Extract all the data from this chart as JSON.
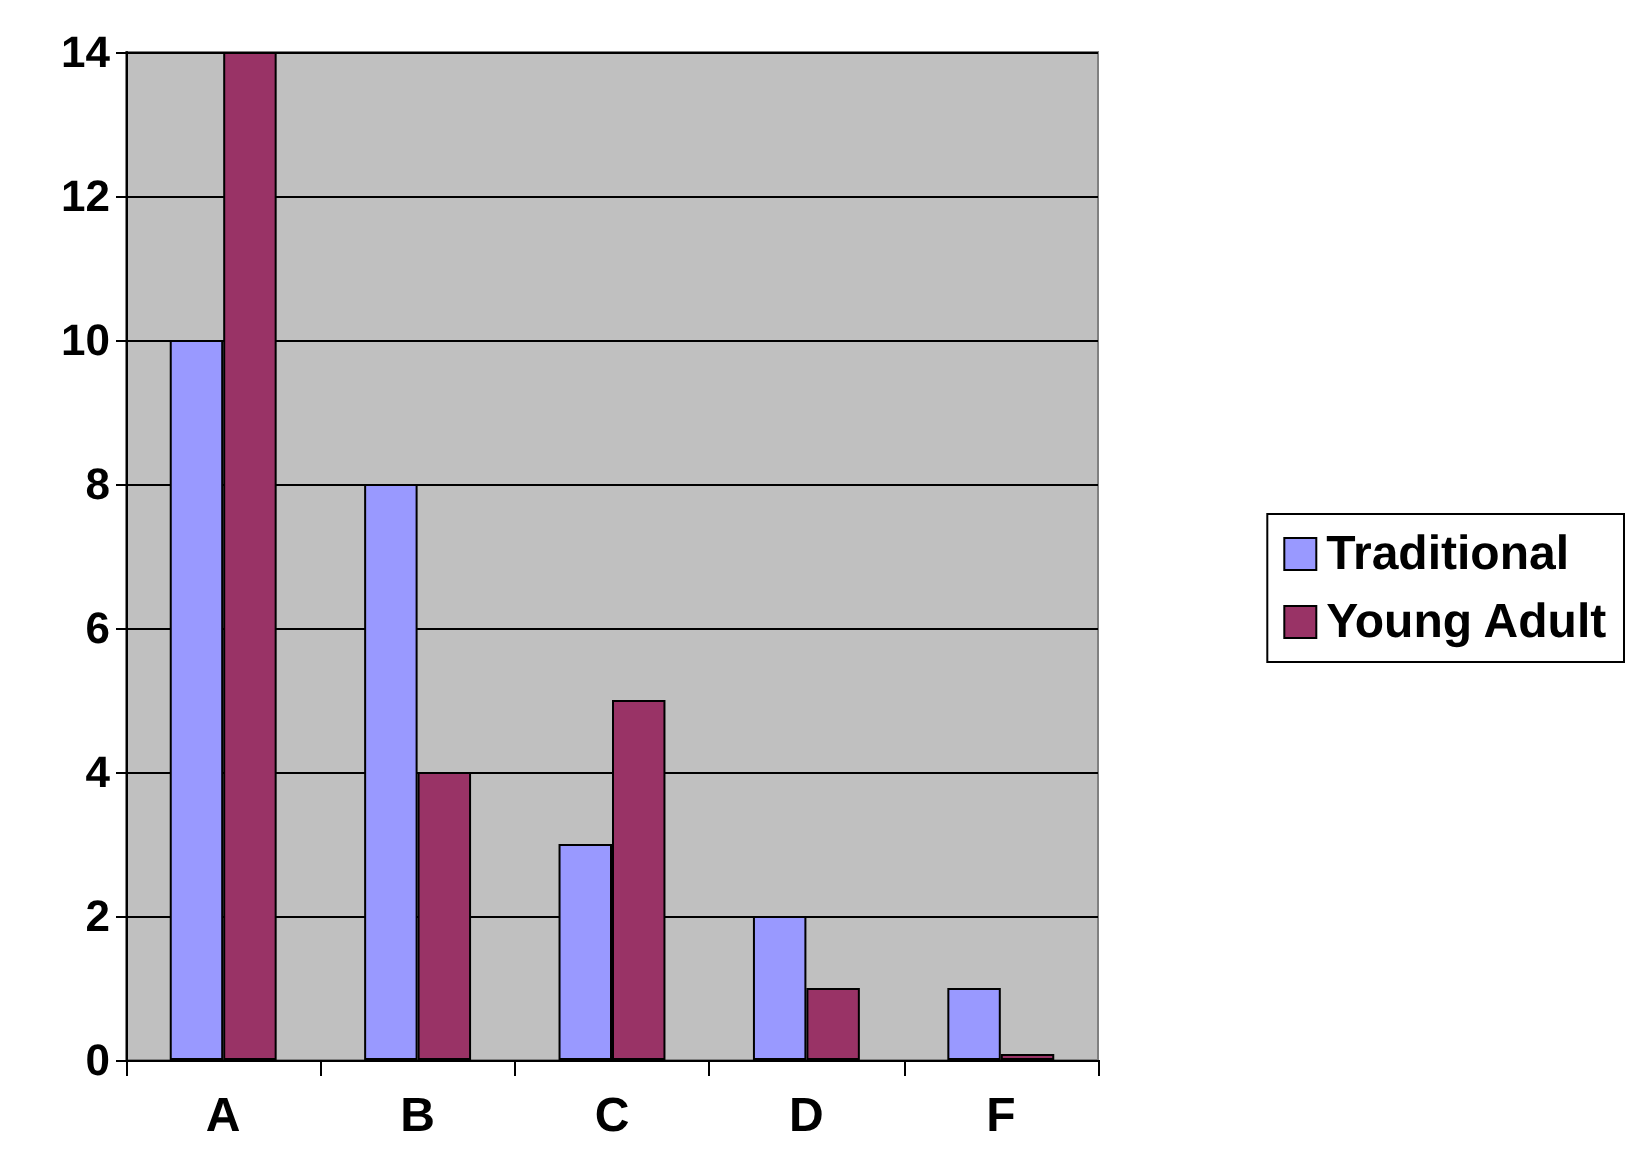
{
  "chart_data": {
    "type": "bar",
    "categories": [
      "A",
      "B",
      "C",
      "D",
      "F"
    ],
    "series": [
      {
        "name": "Traditional",
        "color": "#9999ff",
        "values": [
          10,
          8,
          3,
          2,
          1
        ]
      },
      {
        "name": "Young Adult",
        "color": "#993366",
        "values": [
          14,
          4,
          5,
          1,
          0
        ]
      }
    ],
    "ylim": [
      0,
      14
    ],
    "yticks": [
      0,
      2,
      4,
      6,
      8,
      10,
      12,
      14
    ],
    "grid": "y",
    "legend": "right"
  }
}
